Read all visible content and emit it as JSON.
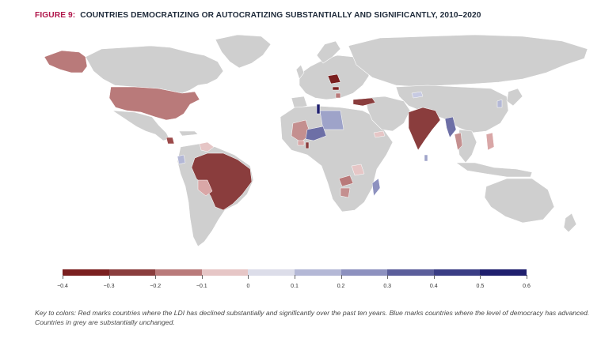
{
  "figure": {
    "label": "FIGURE 9:",
    "title": "COUNTRIES DEMOCRATIZING OR AUTOCRATIZING SUBSTANTIALLY AND SIGNIFICANTLY, 2010–2020"
  },
  "map": {
    "base_color": "#cfcfcf",
    "border_color": "#ffffff",
    "highlighted_countries": [
      {
        "name": "Alaska (USA)",
        "value": -0.25,
        "color": "#b97a7a"
      },
      {
        "name": "United States",
        "value": -0.25,
        "color": "#b97a7a"
      },
      {
        "name": "Brazil",
        "value": -0.35,
        "color": "#8a3d3d"
      },
      {
        "name": "Bolivia",
        "value": -0.15,
        "color": "#d9a7a7"
      },
      {
        "name": "Nicaragua",
        "value": -0.3,
        "color": "#9c4a4a"
      },
      {
        "name": "Venezuela",
        "value": -0.1,
        "color": "#e6c6c6"
      },
      {
        "name": "Ecuador",
        "value": 0.15,
        "color": "#b4b8d6"
      },
      {
        "name": "Poland",
        "value": -0.4,
        "color": "#7a1f1f"
      },
      {
        "name": "Hungary",
        "value": -0.4,
        "color": "#7a1f1f"
      },
      {
        "name": "Serbia",
        "value": -0.25,
        "color": "#b97a7a"
      },
      {
        "name": "Turkey",
        "value": -0.35,
        "color": "#8a3d3d"
      },
      {
        "name": "Tunisia",
        "value": 0.6,
        "color": "#1f1f6e"
      },
      {
        "name": "Libya",
        "value": 0.2,
        "color": "#9ea3c9"
      },
      {
        "name": "Niger",
        "value": 0.3,
        "color": "#6d6fa6"
      },
      {
        "name": "Mali",
        "value": -0.2,
        "color": "#c48f8f"
      },
      {
        "name": "Benin",
        "value": -0.35,
        "color": "#8a3d3d"
      },
      {
        "name": "Burkina Faso",
        "value": -0.15,
        "color": "#d9a7a7"
      },
      {
        "name": "Yemen",
        "value": -0.1,
        "color": "#e6c6c6"
      },
      {
        "name": "Tanzania",
        "value": -0.1,
        "color": "#e6c6c6"
      },
      {
        "name": "Zambia",
        "value": -0.25,
        "color": "#b97a7a"
      },
      {
        "name": "Zimbabwe",
        "value": -0.2,
        "color": "#c48f8f"
      },
      {
        "name": "Madagascar",
        "value": 0.25,
        "color": "#8d91bf"
      },
      {
        "name": "India",
        "value": -0.35,
        "color": "#8a3d3d"
      },
      {
        "name": "Myanmar",
        "value": 0.3,
        "color": "#6d6fa6"
      },
      {
        "name": "Thailand",
        "value": -0.2,
        "color": "#c48f8f"
      },
      {
        "name": "Philippines",
        "value": -0.15,
        "color": "#d9a7a7"
      },
      {
        "name": "Sri Lanka",
        "value": 0.2,
        "color": "#9ea3c9"
      },
      {
        "name": "Japan (Kyushu)",
        "value": 0.15,
        "color": "#b4b8d6"
      },
      {
        "name": "Kyrgyzstan",
        "value": 0.1,
        "color": "#c7cae2"
      }
    ]
  },
  "legend": {
    "ticks": [
      "−0.4",
      "−0.3",
      "−0.2",
      "−0.1",
      "0",
      "0.1",
      "0.2",
      "0.3",
      "0.4",
      "0.5",
      "0.6"
    ],
    "colors": [
      "#7a1f1f",
      "#8a3d3d",
      "#b97a7a",
      "#e6c6c6",
      "#dcdde9",
      "#b4b8d6",
      "#8d91bf",
      "#5b5e9b",
      "#3a3d85",
      "#1f1f6e"
    ]
  },
  "caption": "Key to colors: Red marks countries where the LDI has declined substantially and significantly over the past ten years. Blue marks countries where the level of democracy has advanced. Countries in grey are substantially unchanged."
}
